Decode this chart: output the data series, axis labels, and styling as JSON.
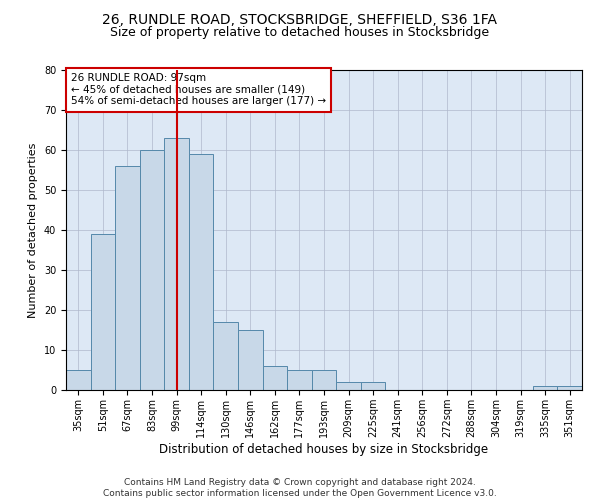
{
  "title1": "26, RUNDLE ROAD, STOCKSBRIDGE, SHEFFIELD, S36 1FA",
  "title2": "Size of property relative to detached houses in Stocksbridge",
  "xlabel": "Distribution of detached houses by size in Stocksbridge",
  "ylabel": "Number of detached properties",
  "footnote1": "Contains HM Land Registry data © Crown copyright and database right 2024.",
  "footnote2": "Contains public sector information licensed under the Open Government Licence v3.0.",
  "categories": [
    "35sqm",
    "51sqm",
    "67sqm",
    "83sqm",
    "99sqm",
    "114sqm",
    "130sqm",
    "146sqm",
    "162sqm",
    "177sqm",
    "193sqm",
    "209sqm",
    "225sqm",
    "241sqm",
    "256sqm",
    "272sqm",
    "288sqm",
    "304sqm",
    "319sqm",
    "335sqm",
    "351sqm"
  ],
  "values": [
    5,
    39,
    56,
    60,
    63,
    59,
    17,
    15,
    6,
    5,
    5,
    2,
    2,
    0,
    0,
    0,
    0,
    0,
    0,
    1,
    1
  ],
  "bar_color": "#c8d8e8",
  "bar_edge_color": "#5588aa",
  "ylim": [
    0,
    80
  ],
  "yticks": [
    0,
    10,
    20,
    30,
    40,
    50,
    60,
    70,
    80
  ],
  "property_label": "26 RUNDLE ROAD: 97sqm",
  "annotation_line1": "← 45% of detached houses are smaller (149)",
  "annotation_line2": "54% of semi-detached houses are larger (177) →",
  "vline_x": 4.5,
  "box_color": "#cc0000",
  "background_color": "#dde8f5",
  "grid_color": "#b0b8cc",
  "title_fontsize": 10,
  "subtitle_fontsize": 9,
  "axis_label_fontsize": 8.5,
  "tick_fontsize": 7,
  "annotation_fontsize": 7.5,
  "ylabel_fontsize": 8
}
